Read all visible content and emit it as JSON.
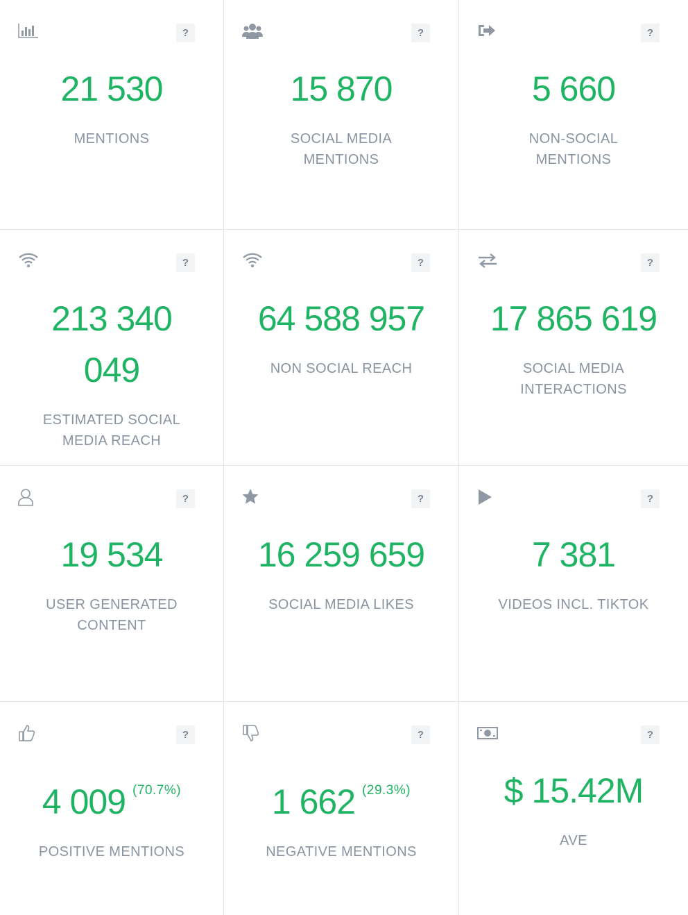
{
  "help_icon": "?",
  "tiles": [
    {
      "value": "21 530",
      "label": "MENTIONS"
    },
    {
      "value": "15 870",
      "label": "SOCIAL MEDIA MENTIONS"
    },
    {
      "value": "5 660",
      "label": "NON-SOCIAL MENTIONS"
    },
    {
      "value": "213 340 049",
      "label": "ESTIMATED SOCIAL MEDIA REACH"
    },
    {
      "value": "64 588 957",
      "label": "NON SOCIAL REACH"
    },
    {
      "value": "17 865 619",
      "label": "SOCIAL MEDIA INTERACTIONS"
    },
    {
      "value": "19 534",
      "label": "USER GENERATED CONTENT"
    },
    {
      "value": "16 259 659",
      "label": "SOCIAL MEDIA LIKES"
    },
    {
      "value": "7 381",
      "label": "VIDEOS INCL. TIKTOK"
    },
    {
      "value": "4 009",
      "share": "(70.7%)",
      "label": "POSITIVE MENTIONS"
    },
    {
      "value": "1 662",
      "share": "(29.3%)",
      "label": "NEGATIVE MENTIONS"
    },
    {
      "value": "$ 15.42M",
      "label": "AVE"
    }
  ]
}
